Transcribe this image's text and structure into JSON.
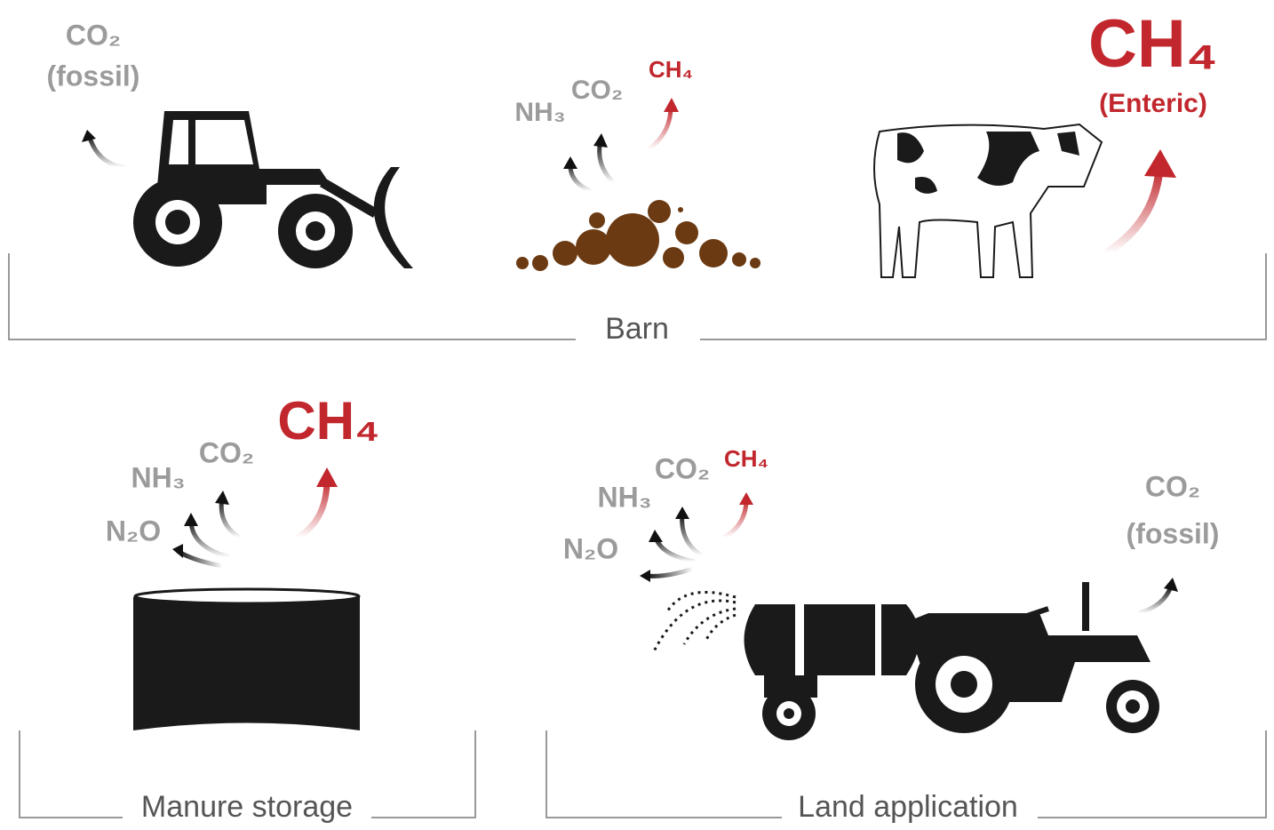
{
  "barn": {
    "label": "Barn",
    "tractor_emissions": {
      "gas": "CO₂",
      "note": "(fossil)"
    },
    "manure_emissions": [
      "NH₃",
      "CO₂",
      "CH₄"
    ],
    "cow_emissions": {
      "gas": "CH₄",
      "note": "(Enteric)"
    }
  },
  "manure_storage": {
    "label": "Manure storage",
    "emissions": [
      "N₂O",
      "NH₃",
      "CO₂",
      "CH₄"
    ]
  },
  "land_application": {
    "label": "Land application",
    "emissions": [
      "N₂O",
      "NH₃",
      "CO₂",
      "CH₄"
    ],
    "tractor_emissions": {
      "gas": "CO₂",
      "note": "(fossil)"
    }
  }
}
